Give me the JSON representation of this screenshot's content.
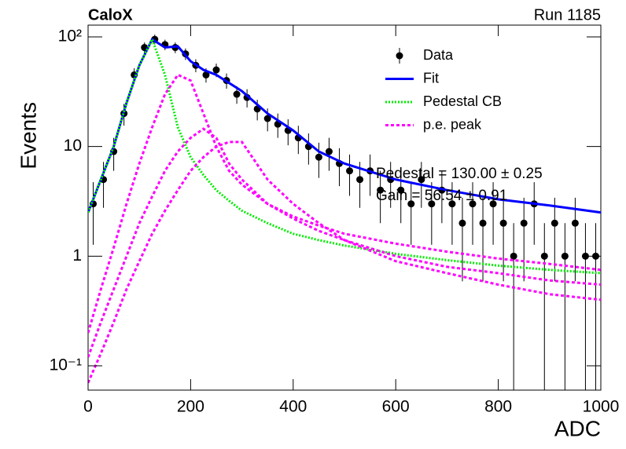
{
  "chart_data": {
    "type": "line",
    "title": "CaloX",
    "subtitle": "Run 1185",
    "x_label": "ADC",
    "y_label": "Events",
    "annotations": [
      "Pedestal = 130.00 ± 0.25",
      "Gain = 56.54 ± 0.91"
    ],
    "log_y": true,
    "legend": "upper right",
    "xlim": [
      0,
      1000
    ],
    "ylim": [
      0.06,
      128
    ],
    "xticks": [
      0,
      200,
      400,
      600,
      800,
      1000
    ],
    "yticks": [
      {
        "value": 0.1,
        "label": "10⁻¹"
      },
      1,
      10,
      {
        "value": 100,
        "label": "10²"
      }
    ],
    "series": [
      {
        "name": "Data",
        "color": "#000000",
        "style": "points",
        "x": [
          10,
          30,
          50,
          70,
          90,
          110,
          130,
          150,
          170,
          190,
          210,
          230,
          250,
          270,
          290,
          310,
          330,
          350,
          370,
          390,
          410,
          430,
          450,
          470,
          490,
          510,
          530,
          550,
          570,
          590,
          610,
          630,
          650,
          670,
          690,
          710,
          730,
          750,
          770,
          790,
          810,
          830,
          850,
          870,
          890,
          910,
          930,
          950,
          970,
          990
        ],
        "values": [
          3,
          5,
          9,
          20,
          45,
          80,
          95,
          85,
          80,
          70,
          55,
          45,
          50,
          40,
          30,
          28,
          22,
          18,
          16,
          14,
          12,
          10,
          8,
          9,
          7,
          6,
          5,
          6,
          4,
          5,
          4,
          3,
          5,
          3,
          4,
          3,
          2,
          3,
          2,
          3,
          2,
          1,
          2,
          3,
          1,
          2,
          1,
          2,
          1,
          1
        ],
        "errors": [
          1.73,
          2.24,
          3,
          4.47,
          6.71,
          8.94,
          9.75,
          9.22,
          8.94,
          8.37,
          7.42,
          6.71,
          7.07,
          6.32,
          5.48,
          5.29,
          4.69,
          4.24,
          4,
          3.74,
          3.46,
          3.16,
          2.83,
          3,
          2.65,
          2.45,
          2.24,
          2.45,
          2,
          2.24,
          2,
          1.73,
          2.24,
          1.73,
          2,
          1.73,
          1.41,
          1.73,
          1.41,
          1.73,
          1.41,
          1,
          1.41,
          1.73,
          1,
          1.41,
          1,
          1.41,
          1,
          1
        ]
      },
      {
        "name": "Fit",
        "color": "#0000ff",
        "style": "solid",
        "x": [
          0,
          25,
          50,
          75,
          100,
          125,
          150,
          175,
          200,
          225,
          250,
          275,
          300,
          350,
          400,
          450,
          500,
          600,
          700,
          800,
          900,
          1000
        ],
        "values": [
          2.5,
          5,
          10,
          25,
          55,
          95,
          80,
          82,
          60,
          50,
          45,
          38,
          32,
          20,
          14,
          9,
          7,
          5,
          4,
          3.3,
          2.9,
          2.5
        ]
      },
      {
        "name": "Pedestal CB",
        "color": "#00ee00",
        "style": "dotted",
        "x": [
          0,
          25,
          50,
          75,
          100,
          125,
          150,
          175,
          200,
          225,
          250,
          275,
          300,
          350,
          400,
          450,
          500,
          600,
          700,
          800,
          900,
          1000
        ],
        "values": [
          2.5,
          5,
          10,
          25,
          55,
          95,
          45,
          15,
          8,
          5.5,
          4,
          3.2,
          2.6,
          2,
          1.6,
          1.4,
          1.25,
          1.05,
          0.92,
          0.82,
          0.75,
          0.7
        ]
      },
      {
        "name": "p.e. peak",
        "color": "#ff00ff",
        "style": "dashed",
        "x": [
          0,
          25,
          50,
          75,
          100,
          125,
          150,
          175,
          200,
          225,
          250,
          275,
          300,
          350,
          400,
          450,
          500,
          600,
          700,
          800,
          900,
          1000
        ],
        "curves": [
          [
            0.2,
            0.5,
            1.2,
            3,
            7,
            15,
            30,
            45,
            40,
            20,
            10,
            6,
            4.5,
            3,
            2.3,
            1.9,
            1.6,
            1.3,
            1.1,
            0.95,
            0.85,
            0.75
          ],
          [
            0.12,
            0.25,
            0.5,
            1,
            2,
            3.5,
            6,
            9,
            12,
            14.5,
            12,
            7,
            5,
            3,
            2.2,
            1.7,
            1.4,
            1,
            0.8,
            0.7,
            0.6,
            0.55
          ],
          [
            0.07,
            0.13,
            0.25,
            0.5,
            0.9,
            1.6,
            2.6,
            4,
            6,
            8,
            10,
            11,
            11,
            5,
            3,
            2,
            1.4,
            0.9,
            0.7,
            0.55,
            0.45,
            0.4
          ]
        ]
      }
    ]
  }
}
